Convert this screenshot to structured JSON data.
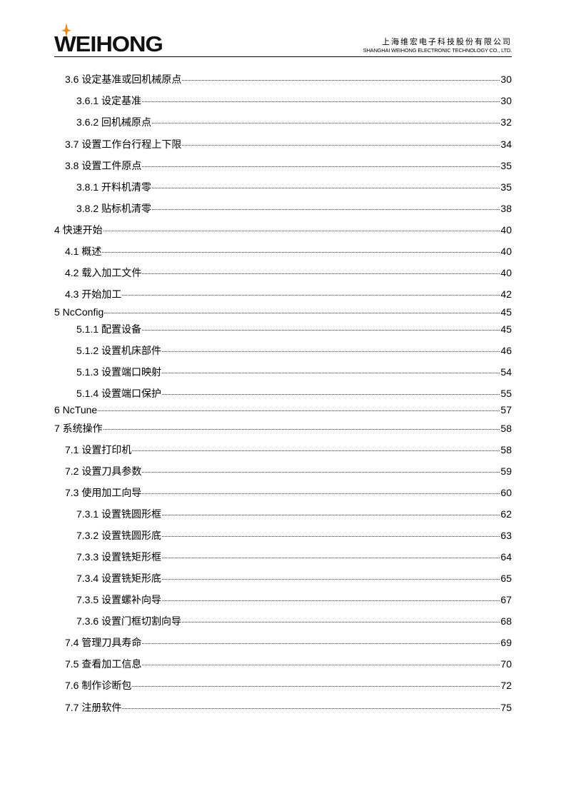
{
  "header": {
    "logo": "WEIHONG",
    "company_cn": "上海维宏电子科技股份有限公司",
    "company_en": "SHANGHAI WEIHONG ELECTRONIC TECHNOLOGY CO., LTD.",
    "accent": "#e8891c"
  },
  "toc": [
    {
      "label": "3.6 设定基准或回机械原点",
      "page": "30",
      "level": 2
    },
    {
      "label": "3.6.1 设定基准",
      "page": "30",
      "level": 3
    },
    {
      "label": "3.6.2 回机械原点",
      "page": "32",
      "level": 3
    },
    {
      "label": "3.7 设置工作台行程上下限",
      "page": "34",
      "level": 2
    },
    {
      "label": "3.8 设置工件原点",
      "page": "35",
      "level": 2
    },
    {
      "label": "3.8.1 开料机清零",
      "page": "35",
      "level": 3
    },
    {
      "label": "3.8.2 贴标机清零",
      "page": "38",
      "level": 3
    },
    {
      "label": "4 快速开始",
      "page": "40",
      "level": 1
    },
    {
      "label": "4.1 概述",
      "page": "40",
      "level": 2
    },
    {
      "label": "4.2 载入加工文件",
      "page": "40",
      "level": 2
    },
    {
      "label": "4.3 开始加工",
      "page": "42",
      "level": 2
    },
    {
      "label": "5 NcConfig",
      "page": "45",
      "level": 1
    },
    {
      "label": "5.1.1 配置设备",
      "page": "45",
      "level": 3
    },
    {
      "label": "5.1.2 设置机床部件",
      "page": "46",
      "level": 3
    },
    {
      "label": "5.1.3 设置端口映射",
      "page": "54",
      "level": 3
    },
    {
      "label": "5.1.4 设置端口保护",
      "page": "55",
      "level": 3
    },
    {
      "label": "6 NcTune",
      "page": "57",
      "level": 1
    },
    {
      "label": "7 系统操作",
      "page": "58",
      "level": 1
    },
    {
      "label": "7.1 设置打印机",
      "page": "58",
      "level": 2
    },
    {
      "label": "7.2 设置刀具参数",
      "page": "59",
      "level": 2
    },
    {
      "label": "7.3 使用加工向导",
      "page": "60",
      "level": 2
    },
    {
      "label": "7.3.1 设置铣圆形框",
      "page": "62",
      "level": 3
    },
    {
      "label": "7.3.2 设置铣圆形底",
      "page": "63",
      "level": 3
    },
    {
      "label": "7.3.3 设置铣矩形框",
      "page": "64",
      "level": 3
    },
    {
      "label": "7.3.4 设置铣矩形底",
      "page": "65",
      "level": 3
    },
    {
      "label": "7.3.5 设置螺补向导",
      "page": "67",
      "level": 3
    },
    {
      "label": "7.3.6 设置门框切割向导",
      "page": "68",
      "level": 3
    },
    {
      "label": "7.4 管理刀具寿命",
      "page": "69",
      "level": 2
    },
    {
      "label": "7.5 查看加工信息",
      "page": "70",
      "level": 2
    },
    {
      "label": "7.6 制作诊断包",
      "page": "72",
      "level": 2
    },
    {
      "label": "7.7 注册软件",
      "page": "75",
      "level": 2
    }
  ]
}
